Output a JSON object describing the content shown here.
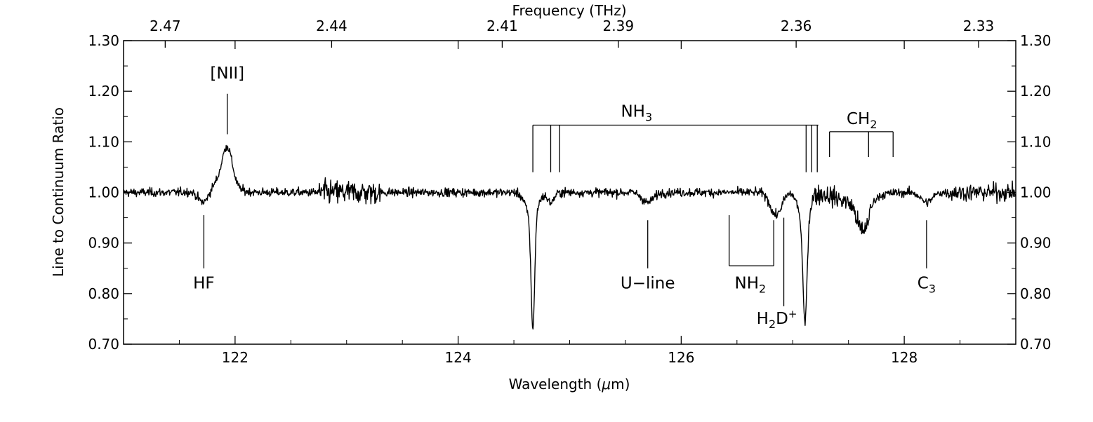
{
  "chart_data": {
    "type": "line",
    "xlabel_parts": [
      "Wavelength (",
      "μ",
      "m)"
    ],
    "ylabel": "Line to Continuum Ratio",
    "top_axis_label": "Frequency (THz)",
    "xlim": [
      121.0,
      129.0
    ],
    "ylim": [
      0.7,
      1.3
    ],
    "grid": false,
    "x_ticks": [
      {
        "value": 122,
        "label": "122"
      },
      {
        "value": 124,
        "label": "124"
      },
      {
        "value": 126,
        "label": "126"
      },
      {
        "value": 128,
        "label": "128"
      }
    ],
    "y_ticks": [
      {
        "value": 0.7,
        "label": "0.70"
      },
      {
        "value": 0.8,
        "label": "0.80"
      },
      {
        "value": 0.9,
        "label": "0.90"
      },
      {
        "value": 1.0,
        "label": "1.00"
      },
      {
        "value": 1.1,
        "label": "1.10"
      },
      {
        "value": 1.2,
        "label": "1.20"
      },
      {
        "value": 1.3,
        "label": "1.30"
      }
    ],
    "top_ticks": [
      {
        "value": 2.47,
        "label": "2.47"
      },
      {
        "value": 2.44,
        "label": "2.44"
      },
      {
        "value": 2.41,
        "label": "2.41"
      },
      {
        "value": 2.39,
        "label": "2.39"
      },
      {
        "value": 2.36,
        "label": "2.36"
      },
      {
        "value": 2.33,
        "label": "2.33"
      }
    ],
    "series": [
      {
        "baseline": 1.0,
        "features": [
          {
            "center": 121.72,
            "width": 0.05,
            "depth": -0.03
          },
          {
            "center": 121.93,
            "width": 0.045,
            "depth": 0.075
          },
          {
            "center": 121.85,
            "width": 0.12,
            "depth": 0.02
          },
          {
            "center": 124.67,
            "width": 0.016,
            "depth": -0.22
          },
          {
            "center": 124.66,
            "width": 0.05,
            "depth": -0.05
          },
          {
            "center": 124.83,
            "width": 0.03,
            "depth": -0.02
          },
          {
            "center": 125.7,
            "width": 0.05,
            "depth": -0.02
          },
          {
            "center": 126.85,
            "width": 0.05,
            "depth": -0.045
          },
          {
            "center": 127.11,
            "width": 0.018,
            "depth": -0.2
          },
          {
            "center": 127.1,
            "width": 0.045,
            "depth": -0.06
          },
          {
            "center": 127.63,
            "width": 0.05,
            "depth": -0.06
          },
          {
            "center": 127.55,
            "width": 0.15,
            "depth": -0.02
          },
          {
            "center": 128.2,
            "width": 0.05,
            "depth": -0.02
          }
        ],
        "noisy_ranges": [
          {
            "from": 122.75,
            "to": 123.3,
            "sigma": 0.017
          },
          {
            "from": 127.15,
            "to": 127.7,
            "sigma": 0.014
          },
          {
            "from": 128.4,
            "to": 129.0,
            "sigma": 0.012
          }
        ],
        "default_sigma": 0.006
      }
    ],
    "annotations": [
      {
        "text": "[NII]",
        "x": 121.93,
        "y_text": 1.225,
        "line": [
          1.115,
          1.195
        ]
      },
      {
        "text": "HF",
        "x": 121.72,
        "y_text": 0.81,
        "line": [
          0.85,
          0.955
        ]
      },
      {
        "text": "U−line",
        "x": 125.7,
        "y_text": 0.81,
        "line": [
          0.85,
          0.945
        ]
      },
      {
        "text": "C",
        "sub": "3",
        "x": 128.2,
        "y_text": 0.81,
        "line": [
          0.85,
          0.945
        ]
      }
    ],
    "nh3": {
      "text": "NH",
      "sub": "3",
      "x_text": 125.6,
      "y_text": 1.15,
      "bar_y": 1.133,
      "bar_from": 124.67,
      "bar_to": 127.23,
      "legs": [
        [
          124.67,
          1.04
        ],
        [
          124.83,
          1.04
        ],
        [
          124.91,
          1.04
        ],
        [
          127.12,
          1.04
        ],
        [
          127.17,
          1.04
        ],
        [
          127.22,
          1.04
        ]
      ]
    },
    "ch2": {
      "text": "CH",
      "sub": "2",
      "x_text": 127.62,
      "y_text": 1.135,
      "bar_y": 1.12,
      "bar_from": 127.33,
      "bar_to": 127.9,
      "legs": [
        [
          127.33,
          1.07
        ],
        [
          127.68,
          1.07
        ],
        [
          127.9,
          1.07
        ]
      ]
    },
    "nh2": {
      "text": "NH",
      "sub": "2",
      "x_text": 126.62,
      "y_text": 0.81,
      "bar_y": 0.855,
      "bar_from": 126.43,
      "bar_to": 126.83,
      "legs": [
        [
          126.43,
          0.955
        ],
        [
          126.83,
          0.945
        ]
      ]
    },
    "h2d": {
      "text_parts": [
        "H",
        "2",
        "D",
        "+"
      ],
      "x": 126.92,
      "y_text": 0.74,
      "line": [
        0.775,
        0.95
      ]
    }
  }
}
